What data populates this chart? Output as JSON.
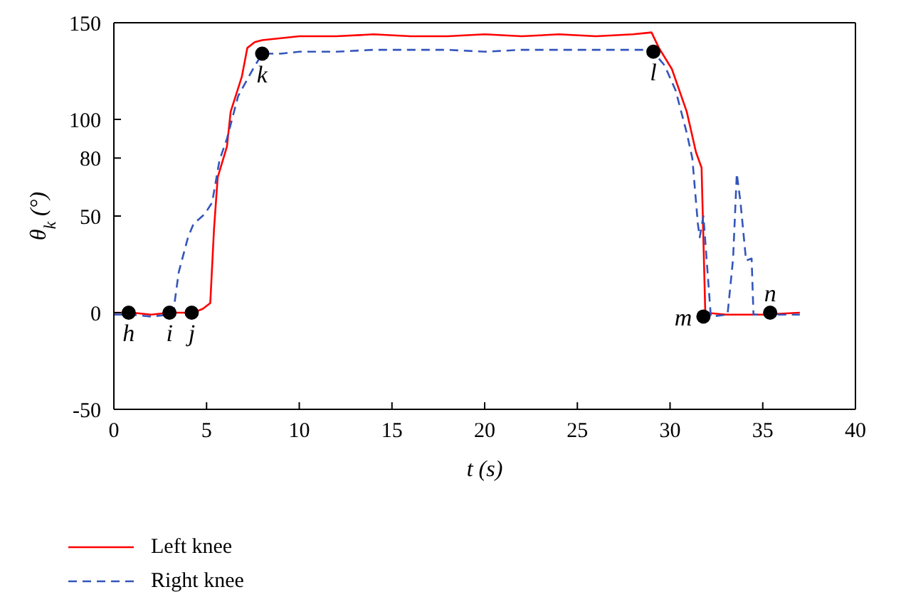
{
  "chart_data": {
    "type": "line",
    "xlabel": "t (s)",
    "ylabel": "θ$_{k}$ (°)",
    "xlim": [
      0,
      40
    ],
    "xticks": [
      0,
      5,
      10,
      15,
      20,
      25,
      30,
      35,
      40
    ],
    "ylim": [
      -50,
      150
    ],
    "yticks": [
      -50,
      0,
      50,
      80,
      100,
      150
    ],
    "grid": false,
    "legend": "bottom left",
    "series": [
      {
        "name": "Left knee",
        "color": "#ff0000",
        "line_style": "solid",
        "x": [
          0,
          1,
          2,
          3,
          4,
          4.3,
          4.8,
          5.2,
          5.4,
          5.6,
          6.1,
          6.3,
          6.9,
          7.2,
          7.6,
          8,
          9,
          10,
          12,
          14,
          16,
          18,
          20,
          22,
          24,
          26,
          28,
          29,
          29.4,
          30.1,
          30.9,
          31.4,
          31.7,
          31.9,
          33,
          35,
          37
        ],
        "values": [
          0,
          0,
          -1,
          0,
          0,
          0,
          2,
          5,
          43,
          70,
          86,
          104,
          122,
          137,
          140,
          141,
          142,
          143,
          143,
          144,
          143,
          143,
          144,
          143,
          144,
          143,
          144,
          145,
          137,
          126,
          104,
          83,
          75,
          0,
          -1,
          -1,
          0
        ]
      },
      {
        "name": "Right knee",
        "color": "#3355bb",
        "line_style": "dashed",
        "x": [
          0,
          1,
          2,
          3,
          3.2,
          3.5,
          4,
          4.3,
          4.9,
          5.3,
          5.7,
          6.1,
          6.7,
          7.5,
          8,
          9,
          10,
          12,
          14,
          16,
          18,
          20,
          22,
          24,
          26,
          28,
          29,
          29.7,
          30.3,
          30.9,
          31.2,
          31.5,
          31.6,
          31.8,
          32.2,
          33.1,
          33.4,
          33.6,
          33.8,
          34.1,
          34.4,
          34.5,
          36,
          37
        ],
        "values": [
          -1,
          -1,
          -2,
          -1,
          0,
          21,
          39,
          46,
          51,
          57,
          79,
          90,
          112,
          126,
          134,
          134,
          135,
          135,
          136,
          136,
          136,
          135,
          136,
          136,
          136,
          136,
          136,
          128,
          115,
          93,
          80,
          46,
          39,
          50,
          -2,
          -1,
          28,
          72,
          57,
          27,
          28,
          -1,
          -1,
          -1
        ]
      },
      {
        "type": "scatter",
        "color": "#000000",
        "marker": "circle",
        "x": [
          0.8,
          3,
          4.2,
          8,
          29.1,
          31.8,
          35.4
        ],
        "values": [
          0,
          0,
          0,
          134,
          135,
          -2,
          0
        ]
      }
    ],
    "annotations": [
      {
        "text": "h",
        "x": 0.8,
        "y": 0
      },
      {
        "text": "i",
        "x": 3,
        "y": 0
      },
      {
        "text": "j",
        "x": 4.2,
        "y": 0
      },
      {
        "text": "k",
        "x": 8,
        "y": 134
      },
      {
        "text": "l",
        "x": 29.1,
        "y": 135
      },
      {
        "text": "m",
        "x": 31.8,
        "y": -2
      },
      {
        "text": "n",
        "x": 35.4,
        "y": 0
      }
    ]
  }
}
